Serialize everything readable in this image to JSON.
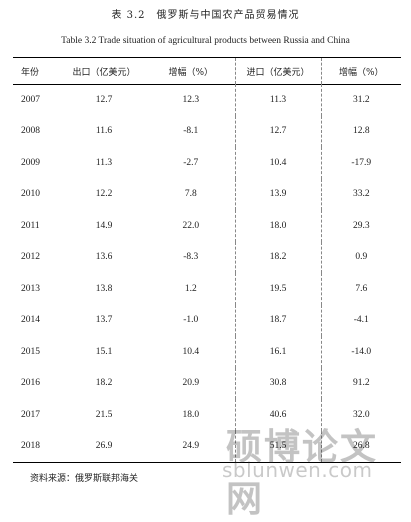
{
  "title_cn": "表 3.2　俄罗斯与中国农产品贸易情况",
  "title_en": "Table 3.2 Trade situation of agricultural products between Russia and China",
  "headers": [
    "年份",
    "出口（亿美元）",
    "增幅（%）",
    "进口（亿美元）",
    "增幅（%）"
  ],
  "rows": [
    [
      "2007",
      "12.7",
      "12.3",
      "11.3",
      "31.2"
    ],
    [
      "2008",
      "11.6",
      "-8.1",
      "12.7",
      "12.8"
    ],
    [
      "2009",
      "11.3",
      "-2.7",
      "10.4",
      "-17.9"
    ],
    [
      "2010",
      "12.2",
      "7.8",
      "13.9",
      "33.2"
    ],
    [
      "2011",
      "14.9",
      "22.0",
      "18.0",
      "29.3"
    ],
    [
      "2012",
      "13.6",
      "-8.3",
      "18.2",
      "0.9"
    ],
    [
      "2013",
      "13.8",
      "1.2",
      "19.5",
      "7.6"
    ],
    [
      "2014",
      "13.7",
      "-1.0",
      "18.7",
      "-4.1"
    ],
    [
      "2015",
      "15.1",
      "10.4",
      "16.1",
      "-14.0"
    ],
    [
      "2016",
      "18.2",
      "20.9",
      "30.8",
      "91.2"
    ],
    [
      "2017",
      "21.5",
      "18.0",
      "40.6",
      "32.0"
    ],
    [
      "2018",
      "26.9",
      "24.9",
      "51.5",
      "26.8"
    ]
  ],
  "source": "资料来源：俄罗斯联邦海关",
  "watermark_cn": "硕博论文网",
  "watermark_en": "sblunwen.com"
}
